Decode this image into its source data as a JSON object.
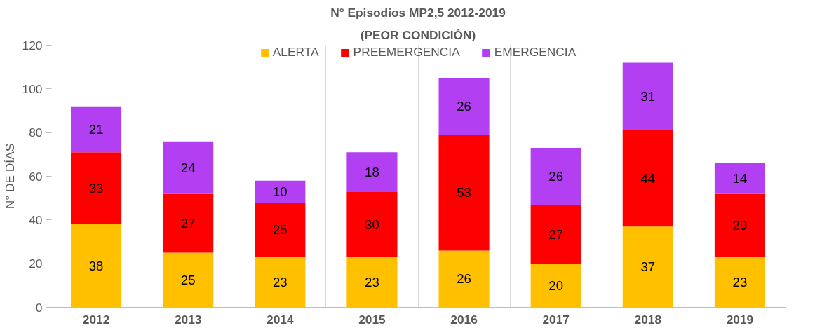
{
  "chart_data": {
    "type": "bar",
    "title": "N° Episodios MP2,5 2012-2019",
    "subtitle": "(PEOR CONDICIÓN)",
    "ylabel": "N° DE DÍAS",
    "categories": [
      "2012",
      "2013",
      "2014",
      "2015",
      "2016",
      "2017",
      "2018",
      "2019"
    ],
    "series": [
      {
        "name": "ALERTA",
        "color": "#ffc000",
        "values": [
          38,
          25,
          23,
          23,
          26,
          20,
          37,
          23
        ]
      },
      {
        "name": "PREEMERGENCIA",
        "color": "#ff0000",
        "values": [
          33,
          27,
          25,
          30,
          53,
          27,
          44,
          29
        ]
      },
      {
        "name": "EMERGENCIA",
        "color": "#b23ff2",
        "values": [
          21,
          24,
          10,
          18,
          26,
          26,
          31,
          14
        ]
      }
    ],
    "stacked": true,
    "ylim": [
      0,
      120
    ],
    "yticks": [
      0,
      20,
      40,
      60,
      80,
      100,
      120
    ],
    "grid": "x",
    "legend": "top",
    "data_labels": true
  }
}
